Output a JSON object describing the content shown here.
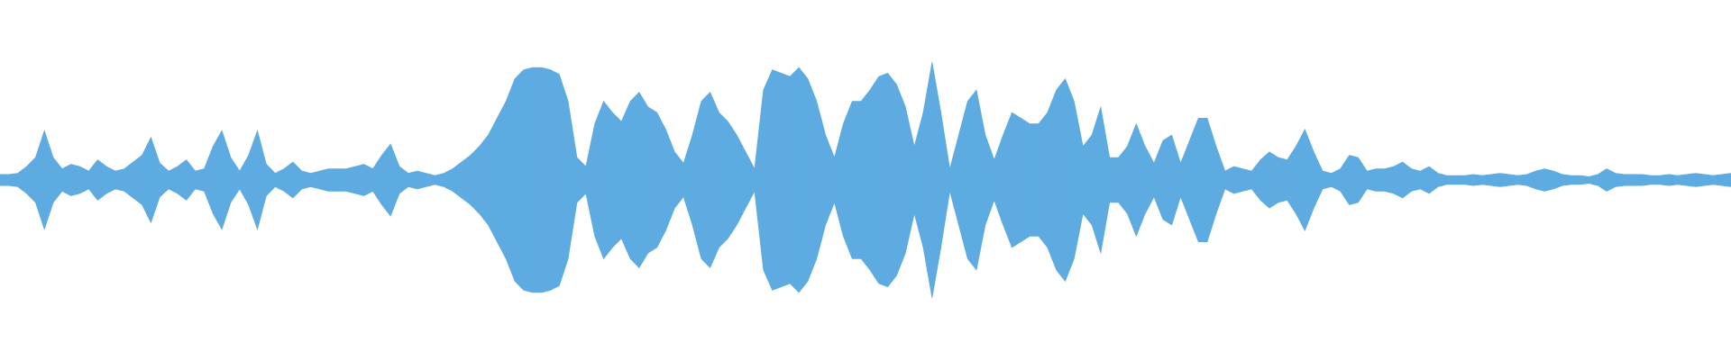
{
  "chart_data": {
    "type": "waveform",
    "color": "#5dabe1",
    "values": [
      5,
      5,
      6,
      12,
      20,
      44,
      20,
      10,
      14,
      12,
      8,
      18,
      12,
      8,
      10,
      16,
      22,
      38,
      15,
      8,
      12,
      18,
      8,
      10,
      30,
      44,
      20,
      8,
      22,
      44,
      14,
      6,
      10,
      16,
      8,
      6,
      8,
      10,
      10,
      10,
      12,
      14,
      10,
      22,
      32,
      12,
      6,
      8,
      6,
      4,
      6,
      10,
      16,
      22,
      30,
      40,
      55,
      70,
      90,
      98,
      100,
      100,
      98,
      94,
      70,
      20,
      12,
      50,
      70,
      60,
      52,
      70,
      78,
      65,
      60,
      45,
      25,
      15,
      40,
      70,
      78,
      60,
      52,
      40,
      25,
      10,
      80,
      98,
      95,
      92,
      100,
      90,
      70,
      40,
      20,
      50,
      70,
      70,
      80,
      92,
      95,
      85,
      65,
      30,
      60,
      105,
      60,
      10,
      40,
      70,
      80,
      40,
      18,
      40,
      60,
      55,
      50,
      50,
      60,
      80,
      90,
      70,
      30,
      40,
      65,
      20,
      20,
      30,
      50,
      30,
      15,
      35,
      40,
      15,
      35,
      55,
      55,
      30,
      8,
      12,
      10,
      8,
      18,
      25,
      20,
      18,
      30,
      45,
      25,
      8,
      6,
      10,
      22,
      20,
      8,
      10,
      10,
      12,
      16,
      10,
      8,
      12,
      6,
      4,
      4,
      4,
      5,
      4,
      5,
      6,
      5,
      4,
      5,
      8,
      10,
      8,
      5,
      4,
      4,
      3,
      5,
      10,
      6,
      5,
      5,
      5,
      4,
      4,
      5,
      4,
      5,
      6,
      5,
      4,
      5,
      6
    ]
  }
}
